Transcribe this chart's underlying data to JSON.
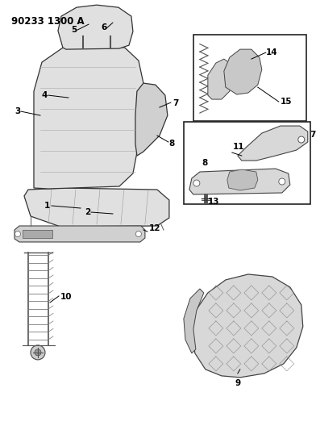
{
  "title": "90233 1300 A",
  "bg_color": "#ffffff",
  "fg_color": "#000000",
  "figsize": [
    3.92,
    5.33
  ],
  "dpi": 100,
  "gray_fill": "#e0e0e0",
  "dark_gray": "#888888",
  "line_color": "#333333"
}
